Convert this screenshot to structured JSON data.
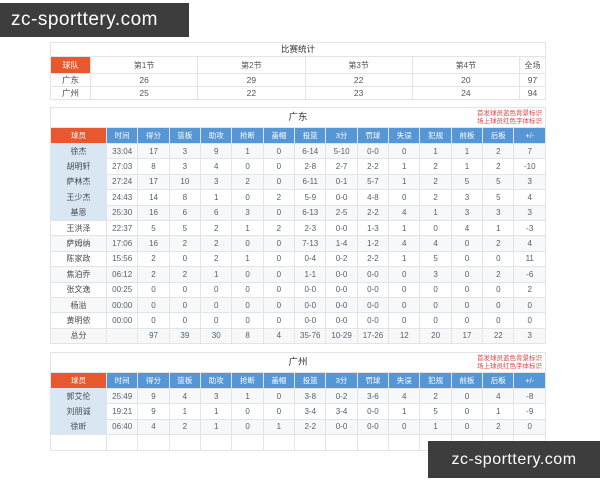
{
  "watermark": {
    "text": "zc-sporttery.com"
  },
  "legend": {
    "line1": "首发球员蓝色背景标识",
    "line2": "场上球员红色字体标识"
  },
  "score_table": {
    "title": "比赛统计",
    "columns": [
      "球队",
      "第1节",
      "第2节",
      "第3节",
      "第4节",
      "全场"
    ],
    "rows": [
      {
        "label": "广东",
        "cells": [
          "26",
          "29",
          "22",
          "20",
          "97"
        ]
      },
      {
        "label": "广州",
        "cells": [
          "25",
          "22",
          "23",
          "24",
          "94"
        ]
      }
    ]
  },
  "stat_columns": [
    "球员",
    "时间",
    "得分",
    "篮板",
    "助攻",
    "抢断",
    "盖帽",
    "投篮",
    "3分",
    "罚球",
    "失误",
    "犯规",
    "前板",
    "后板",
    "+/-"
  ],
  "guangdong": {
    "title": "广东",
    "players": [
      {
        "label": "徐杰",
        "starter": true,
        "cells": [
          "33:04",
          "17",
          "3",
          "9",
          "1",
          "0",
          "6-14",
          "5-10",
          "0-0",
          "0",
          "1",
          "1",
          "2",
          "7"
        ]
      },
      {
        "label": "胡明轩",
        "starter": true,
        "cells": [
          "27:03",
          "8",
          "3",
          "4",
          "0",
          "0",
          "2-8",
          "2-7",
          "2-2",
          "1",
          "2",
          "1",
          "2",
          "-10"
        ]
      },
      {
        "label": "萨林杰",
        "starter": true,
        "cells": [
          "27:24",
          "17",
          "10",
          "3",
          "2",
          "0",
          "6-11",
          "0-1",
          "5-7",
          "1",
          "2",
          "5",
          "5",
          "3"
        ]
      },
      {
        "label": "王少杰",
        "starter": true,
        "cells": [
          "24:43",
          "14",
          "8",
          "1",
          "0",
          "2",
          "5-9",
          "0-0",
          "4-8",
          "0",
          "2",
          "3",
          "5",
          "4"
        ]
      },
      {
        "label": "基恩",
        "starter": true,
        "cells": [
          "25:30",
          "16",
          "6",
          "6",
          "3",
          "0",
          "6-13",
          "2-5",
          "2-2",
          "4",
          "1",
          "3",
          "3",
          "3"
        ]
      },
      {
        "label": "王洪泽",
        "starter": false,
        "cells": [
          "22:37",
          "5",
          "5",
          "2",
          "1",
          "2",
          "2-3",
          "0-0",
          "1-3",
          "1",
          "0",
          "4",
          "1",
          "-3"
        ]
      },
      {
        "label": "萨姆纳",
        "starter": false,
        "cells": [
          "17:06",
          "16",
          "2",
          "2",
          "0",
          "0",
          "7-13",
          "1-4",
          "1-2",
          "4",
          "4",
          "0",
          "2",
          "4"
        ]
      },
      {
        "label": "陈家政",
        "starter": false,
        "cells": [
          "15:56",
          "2",
          "0",
          "2",
          "1",
          "0",
          "0-4",
          "0-2",
          "2-2",
          "1",
          "5",
          "0",
          "0",
          "11"
        ]
      },
      {
        "label": "焦泊乔",
        "starter": false,
        "cells": [
          "06:12",
          "2",
          "2",
          "1",
          "0",
          "0",
          "1-1",
          "0-0",
          "0-0",
          "0",
          "3",
          "0",
          "2",
          "-6"
        ]
      },
      {
        "label": "张文逸",
        "starter": false,
        "cells": [
          "00:25",
          "0",
          "0",
          "0",
          "0",
          "0",
          "0-0",
          "0-0",
          "0-0",
          "0",
          "0",
          "0",
          "0",
          "2"
        ]
      },
      {
        "label": "杨溢",
        "starter": false,
        "cells": [
          "00:00",
          "0",
          "0",
          "0",
          "0",
          "0",
          "0-0",
          "0-0",
          "0-0",
          "0",
          "0",
          "0",
          "0",
          "0"
        ]
      },
      {
        "label": "黄明依",
        "starter": false,
        "cells": [
          "00:00",
          "0",
          "0",
          "0",
          "0",
          "0",
          "0-0",
          "0-0",
          "0-0",
          "0",
          "0",
          "0",
          "0",
          "0"
        ]
      },
      {
        "label": "总分",
        "total": true,
        "cells": [
          "",
          "97",
          "39",
          "30",
          "8",
          "4",
          "35-76",
          "10-29",
          "17-26",
          "12",
          "20",
          "17",
          "22",
          "3"
        ]
      }
    ]
  },
  "guangzhou": {
    "title": "广州",
    "players": [
      {
        "label": "郭艾伦",
        "starter": true,
        "cells": [
          "25:49",
          "9",
          "4",
          "3",
          "1",
          "0",
          "3-8",
          "0-2",
          "3-6",
          "4",
          "2",
          "0",
          "4",
          "-8"
        ]
      },
      {
        "label": "刘朋诚",
        "starter": true,
        "cells": [
          "19:21",
          "9",
          "1",
          "1",
          "0",
          "0",
          "3-4",
          "3-4",
          "0-0",
          "1",
          "5",
          "0",
          "1",
          "-9"
        ]
      },
      {
        "label": "徐昕",
        "starter": true,
        "cells": [
          "06:40",
          "4",
          "2",
          "1",
          "0",
          "1",
          "2-2",
          "0-0",
          "0-0",
          "0",
          "1",
          "0",
          "2",
          "0"
        ]
      },
      {
        "label": "",
        "starter": false,
        "cells": [
          "",
          "",
          "",
          "",
          "",
          "",
          "",
          "",
          "",
          "",
          "",
          "",
          "",
          ""
        ]
      }
    ]
  }
}
